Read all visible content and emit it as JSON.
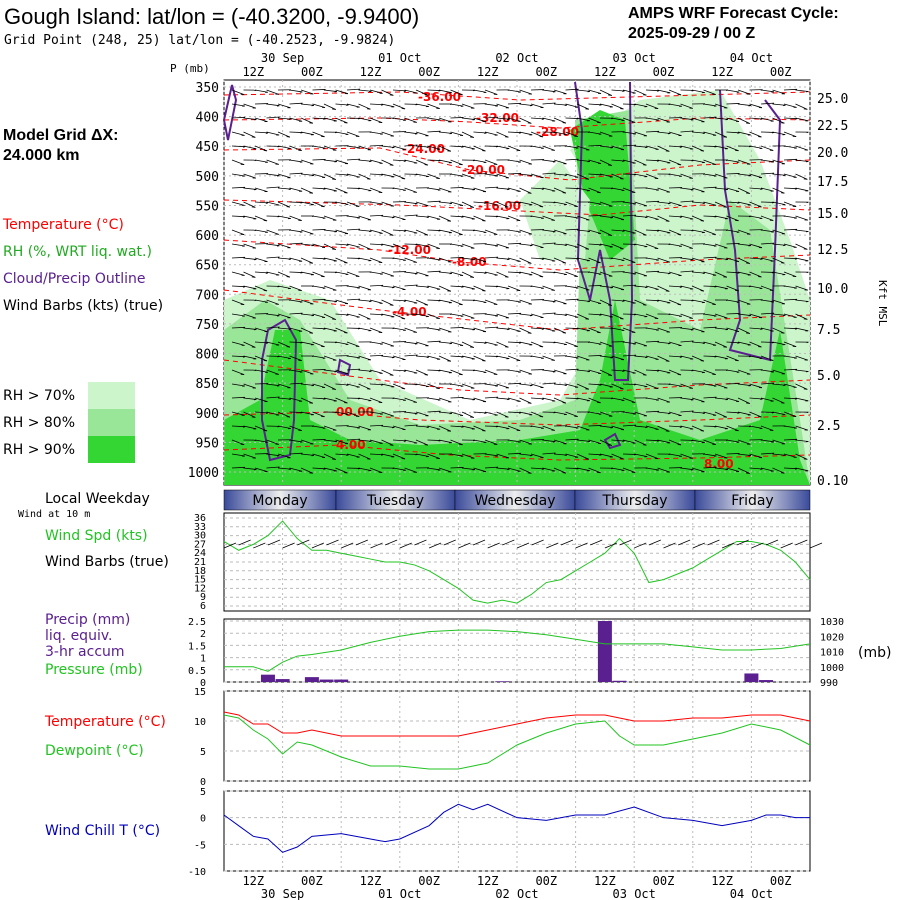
{
  "header": {
    "title": "Gough Island:  lat/lon = (-40.3200, -9.9400)",
    "subtitle": "Grid Point (248, 25) lat/lon = (-40.2523, -9.9824)",
    "cycle_line1": "AMPS WRF Forecast Cycle:",
    "cycle_line2": "2025-09-29 / 00  Z"
  },
  "model_grid": {
    "line1": "Model Grid ΔX:",
    "line2": " 24.000 km"
  },
  "legend": {
    "temperature": "Temperature (°C)",
    "rh": "RH (%, WRT liq. wat.)",
    "cloud": "Cloud/Precip Outline",
    "wind": "Wind Barbs (kts) (true)",
    "rh70": "RH > 70%",
    "rh80": "RH > 80%",
    "rh90": "RH > 90%"
  },
  "colors": {
    "temperature": "#ff0000",
    "rh70": "#ccf5cc",
    "rh80": "#99e699",
    "rh90": "#33d633",
    "cloud": "#5a2090",
    "windspd": "#22c322",
    "precip": "#5a2090",
    "dewpoint": "#22c322",
    "windchill": "#0000bb"
  },
  "time_axis": {
    "top_labels": [
      "12Z",
      "00Z",
      "12Z",
      "00Z",
      "12Z",
      "00Z",
      "12Z",
      "00Z",
      "12Z",
      "00Z"
    ],
    "date_labels": [
      "30 Sep",
      "01 Oct",
      "02 Oct",
      "03 Oct",
      "04 Oct"
    ]
  },
  "weekdays": {
    "title": "Local Weekday",
    "subtitle": "Wind at 10 m",
    "days": [
      "Monday",
      "Tuesday",
      "Wednesday",
      "Thursday",
      "Friday"
    ]
  },
  "panel_labels": {
    "p_mb": "P (mb)",
    "kft": "Kft MSL",
    "wind_spd": "Wind Spd (kts)",
    "wind_barbs": "Wind Barbs (true)",
    "precip1": "Precip (mm)",
    "precip2": "liq. equiv.",
    "precip3": "3-hr accum",
    "pressure": "Pressure (mb)",
    "pressure_unit": "(mb)",
    "temperature": "Temperature (°C)",
    "dewpoint": "Dewpoint (°C)",
    "windchill": "Wind Chill T (°C)"
  },
  "chart_data": [
    {
      "type": "heatmap",
      "id": "cross-section",
      "x_hours": [
        0,
        120
      ],
      "pressure_ticks": [
        "350",
        "400",
        "450",
        "500",
        "550",
        "600",
        "650",
        "700",
        "750",
        "800",
        "850",
        "900",
        "950",
        "1000"
      ],
      "height_ticks": [
        "25.0",
        "22.5",
        "20.0",
        "17.5",
        "15.0",
        "12.5",
        "10.0",
        "7.5",
        "5.0",
        "2.5",
        "0.10"
      ],
      "temperature_contour_labels": [
        "-36.00",
        "-32.00",
        "-28.00",
        "-24.00",
        "-20.00",
        "-16.00",
        "-12.00",
        "-8.00",
        "-4.00",
        "00.00",
        "4.00",
        "8.00"
      ],
      "grid": true
    },
    {
      "type": "line",
      "id": "wind-speed",
      "ylabel": "Wind Spd (kts)",
      "y_ticks": [
        "36",
        "33",
        "30",
        "27",
        "24",
        "21",
        "18",
        "15",
        "12",
        "9",
        "6"
      ],
      "ylim": [
        6,
        36
      ],
      "x_hours": [
        0,
        3,
        6,
        9,
        12,
        15,
        18,
        21,
        24,
        27,
        30,
        33,
        36,
        39,
        42,
        45,
        48,
        51,
        54,
        57,
        60,
        63,
        66,
        69,
        72,
        75,
        78,
        81,
        84,
        87,
        90,
        93,
        96,
        99,
        102,
        105,
        108,
        111,
        114,
        117,
        120
      ],
      "values": [
        28,
        25,
        27,
        30,
        35,
        29,
        25,
        25,
        24,
        23,
        22,
        21,
        21,
        20,
        18,
        15,
        12,
        8,
        7,
        8,
        7,
        10,
        14,
        15,
        18,
        21,
        24,
        29,
        24,
        14,
        15,
        17,
        19,
        22,
        25,
        28,
        28,
        27,
        25,
        21,
        15
      ]
    },
    {
      "type": "bar",
      "id": "precip-pressure",
      "precip_ylabel": "Precip (mm) liq. equiv. 3-hr accum",
      "precip_ticks": [
        "2.5",
        "2",
        "1.5",
        "1",
        "0.5",
        "0"
      ],
      "precip_ylim": [
        0,
        2.5
      ],
      "precip_x_hours": [
        9,
        12,
        18,
        21,
        24,
        57,
        78,
        81,
        108,
        111
      ],
      "precip_values": [
        0.3,
        0.12,
        0.2,
        0.1,
        0.1,
        0.03,
        2.6,
        0.05,
        0.35,
        0.08
      ],
      "pressure_ylabel": "Pressure (mb)",
      "pressure_ticks": [
        "1030",
        "1020",
        "1010",
        "1000",
        "990"
      ],
      "pressure_ylim": [
        990,
        1030
      ],
      "pressure_x_hours": [
        0,
        6,
        9,
        12,
        15,
        18,
        24,
        30,
        36,
        42,
        48,
        54,
        60,
        66,
        72,
        78,
        84,
        90,
        96,
        102,
        108,
        114,
        120
      ],
      "pressure_values": [
        1000,
        1000,
        997,
        1003,
        1007,
        1008,
        1011,
        1016,
        1020,
        1023,
        1024,
        1024,
        1023,
        1021,
        1018,
        1015,
        1015,
        1015,
        1013,
        1011,
        1011,
        1012,
        1015
      ]
    },
    {
      "type": "line",
      "id": "temp-dewpoint",
      "y_ticks": [
        "15",
        "10",
        "5",
        "0"
      ],
      "ylim": [
        0,
        15
      ],
      "x_hours": [
        0,
        3,
        6,
        9,
        12,
        15,
        18,
        24,
        30,
        36,
        42,
        48,
        54,
        60,
        66,
        72,
        78,
        81,
        84,
        90,
        96,
        102,
        108,
        114,
        120
      ],
      "series": [
        {
          "name": "Temperature (°C)",
          "values": [
            11.5,
            11,
            9.5,
            9.5,
            8,
            8,
            8.5,
            7.5,
            7.5,
            7.5,
            7.5,
            7.5,
            8.5,
            9.5,
            10.5,
            11,
            11,
            10.5,
            10,
            10,
            10.5,
            10.5,
            11,
            11,
            10
          ]
        },
        {
          "name": "Dewpoint (°C)",
          "values": [
            11,
            10.5,
            8.5,
            7,
            4.5,
            6.5,
            6,
            4,
            2.5,
            2.5,
            2,
            2,
            3,
            6,
            8,
            9.5,
            10,
            7.5,
            6,
            6,
            7,
            8,
            9.5,
            8.5,
            6
          ]
        }
      ]
    },
    {
      "type": "line",
      "id": "wind-chill",
      "ylabel": "Wind Chill T (°C)",
      "y_ticks": [
        "5",
        "0",
        "-5",
        "-10"
      ],
      "ylim": [
        -10,
        5
      ],
      "x_hours": [
        0,
        3,
        6,
        9,
        12,
        15,
        18,
        24,
        30,
        33,
        36,
        42,
        45,
        48,
        51,
        54,
        60,
        66,
        72,
        78,
        84,
        90,
        96,
        102,
        105,
        108,
        111,
        114,
        117,
        120
      ],
      "values": [
        0.5,
        -1.5,
        -3.5,
        -4,
        -6.5,
        -5.5,
        -3.5,
        -3,
        -4,
        -4.5,
        -4,
        -1.5,
        1,
        2.5,
        1.5,
        2.5,
        0,
        -0.5,
        0.5,
        0.5,
        2,
        0,
        -0.5,
        -1.5,
        -1,
        -0.5,
        0.5,
        0.5,
        0,
        0
      ]
    }
  ]
}
